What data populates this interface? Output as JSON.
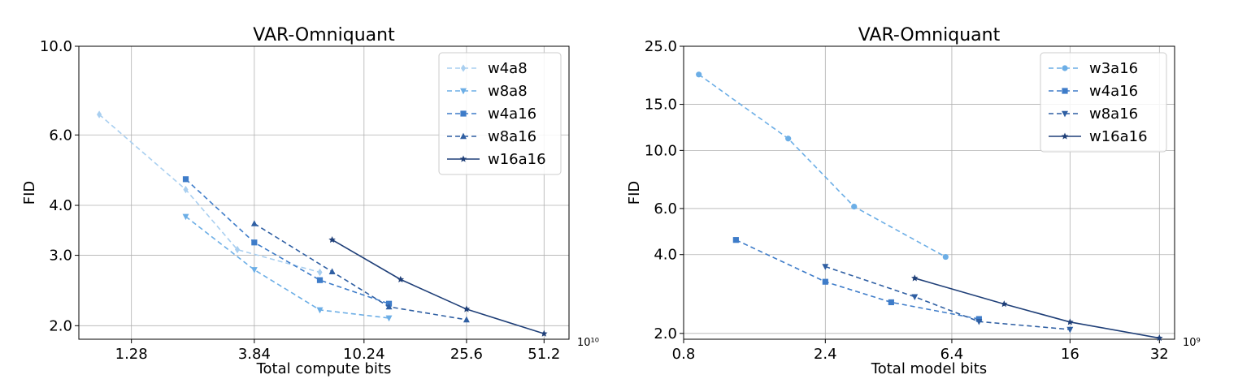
{
  "chart_data": [
    {
      "type": "line",
      "title": "VAR-Omniquant",
      "xlabel": "Total compute bits",
      "ylabel": "FID",
      "xscale": "log",
      "yscale": "log",
      "x_exponent_label": "10¹⁰",
      "xlim": [
        0.8,
        64
      ],
      "ylim": [
        1.85,
        10.0
      ],
      "xticks": [
        1.28,
        3.84,
        10.24,
        25.6,
        51.2
      ],
      "xtick_labels": [
        "1.28",
        "3.84",
        "10.24",
        "25.6",
        "51.2"
      ],
      "yticks": [
        2.0,
        3.0,
        4.0,
        6.0,
        10.0
      ],
      "ytick_labels": [
        "2.0",
        "3.0",
        "4.0",
        "6.0",
        "10.0"
      ],
      "grid": true,
      "legend_position": "top-right",
      "series": [
        {
          "name": "w4a8",
          "color": "#a9cff0",
          "marker": "diamond",
          "dash": true,
          "x": [
            0.96,
            2.08,
            3.3,
            6.9
          ],
          "y": [
            6.75,
            4.38,
            3.1,
            2.72
          ]
        },
        {
          "name": "w8a8",
          "color": "#6caee6",
          "marker": "triangle-down",
          "dash": true,
          "x": [
            2.08,
            3.84,
            6.9,
            12.8
          ],
          "y": [
            3.75,
            2.76,
            2.19,
            2.09
          ]
        },
        {
          "name": "w4a16",
          "color": "#3e7cc9",
          "marker": "square",
          "dash": true,
          "x": [
            2.08,
            3.84,
            6.9,
            12.8
          ],
          "y": [
            4.65,
            3.23,
            2.6,
            2.27
          ]
        },
        {
          "name": "w8a16",
          "color": "#2f5fa3",
          "marker": "triangle-up",
          "dash": true,
          "x": [
            3.84,
            7.7,
            12.8,
            25.6
          ],
          "y": [
            3.6,
            2.73,
            2.23,
            2.07
          ]
        },
        {
          "name": "w16a16",
          "color": "#1f3f78",
          "marker": "star",
          "dash": false,
          "x": [
            7.7,
            14.2,
            25.6,
            51.2
          ],
          "y": [
            3.28,
            2.61,
            2.2,
            1.91
          ]
        }
      ]
    },
    {
      "type": "line",
      "title": "VAR-Omniquant",
      "xlabel": "Total model bits",
      "ylabel": "FID",
      "xscale": "log",
      "yscale": "log",
      "x_exponent_label": "10⁹",
      "xlim": [
        0.8,
        36
      ],
      "ylim": [
        1.9,
        25.0
      ],
      "xticks": [
        0.8,
        2.4,
        6.4,
        16,
        32
      ],
      "xtick_labels": [
        "0.8",
        "2.4",
        "6.4",
        "16",
        "32"
      ],
      "yticks": [
        2.0,
        4.0,
        6.0,
        10.0,
        15.0,
        25.0
      ],
      "ytick_labels": [
        "2.0",
        "4.0",
        "6.0",
        "10.0",
        "15.0",
        "25.0"
      ],
      "grid": true,
      "legend_position": "top-right",
      "series": [
        {
          "name": "w3a16",
          "color": "#6caee6",
          "marker": "circle",
          "dash": true,
          "x": [
            0.9,
            1.8,
            3.0,
            6.1
          ],
          "y": [
            19.5,
            11.1,
            6.1,
            3.92
          ]
        },
        {
          "name": "w4a16",
          "color": "#3e7cc9",
          "marker": "square",
          "dash": true,
          "x": [
            1.2,
            2.4,
            4.0,
            7.9
          ],
          "y": [
            4.55,
            3.15,
            2.63,
            2.27
          ]
        },
        {
          "name": "w8a16",
          "color": "#2f5fa3",
          "marker": "triangle-down",
          "dash": true,
          "x": [
            2.4,
            4.8,
            7.9,
            16
          ],
          "y": [
            3.6,
            2.76,
            2.22,
            2.07
          ]
        },
        {
          "name": "w16a16",
          "color": "#1f3f78",
          "marker": "star",
          "dash": false,
          "x": [
            4.8,
            9.6,
            16,
            32
          ],
          "y": [
            3.25,
            2.59,
            2.21,
            1.92
          ]
        }
      ]
    }
  ]
}
